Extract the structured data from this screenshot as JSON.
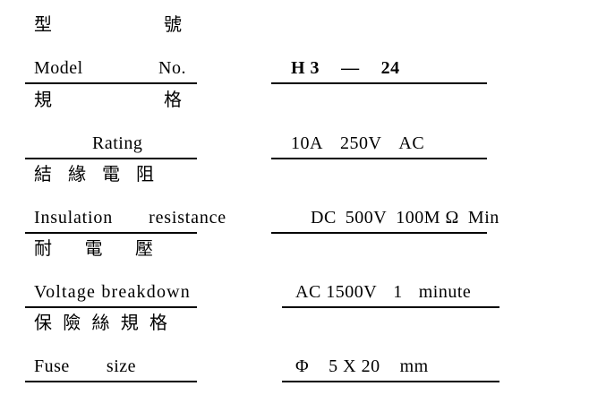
{
  "document": {
    "rows": [
      {
        "zh_parts": [
          "型",
          "號"
        ],
        "en_parts": [
          "Model",
          "No."
        ],
        "value_parts": [
          "H 3",
          "—",
          "24"
        ]
      },
      {
        "zh_parts": [
          "規",
          "格"
        ],
        "en_parts": [
          "Rating"
        ],
        "value_parts": [
          "10A",
          "250V",
          "AC"
        ]
      },
      {
        "zh_parts": [
          "結",
          "緣",
          "電",
          "阻"
        ],
        "en_parts": [
          "Insulation",
          "resistance"
        ],
        "value_parts": [
          "DC",
          "500V",
          "100M Ω",
          "Min"
        ]
      },
      {
        "zh_parts": [
          "耐",
          "電",
          "壓"
        ],
        "en_parts": [
          "Voltage breakdown"
        ],
        "value_parts": [
          "AC 1500V",
          "1",
          "minute"
        ]
      },
      {
        "zh_parts": [
          "保",
          "險",
          "絲",
          "規",
          "格"
        ],
        "en_parts": [
          "Fuse",
          "size"
        ],
        "value_parts": [
          "Φ",
          "5 X 20",
          "mm"
        ]
      }
    ]
  }
}
